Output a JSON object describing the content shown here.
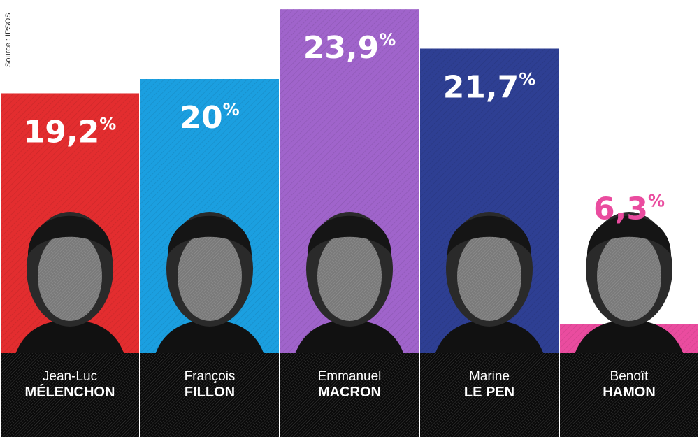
{
  "source": "Source : IPSOS",
  "chart_data": {
    "type": "bar",
    "categories": [
      "Jean-Luc MÉLENCHON",
      "François FILLON",
      "Emmanuel MACRON",
      "Marine LE PEN",
      "Benoît HAMON"
    ],
    "values": [
      19.2,
      20,
      23.9,
      21.7,
      6.3
    ],
    "ylim": [
      0,
      28
    ],
    "candidates": [
      {
        "first": "Jean-Luc",
        "last": "MÉLENCHON",
        "value": 19.2,
        "label_num": "19,2",
        "color": "#e32d2f"
      },
      {
        "first": "François",
        "last": "FILLON",
        "value": 20,
        "label_num": "20",
        "color": "#1b9fe0"
      },
      {
        "first": "Emmanuel",
        "last": "MACRON",
        "value": 23.9,
        "label_num": "23,9",
        "color": "#a064cb"
      },
      {
        "first": "Marine",
        "last": "LE PEN",
        "value": 21.7,
        "label_num": "21,7",
        "color": "#2e3f93"
      },
      {
        "first": "Benoît",
        "last": "HAMON",
        "value": 6.3,
        "label_num": "6,3",
        "color": "#ea4c9f"
      }
    ],
    "percent_sign": "%",
    "grid": false,
    "legend": "none"
  }
}
